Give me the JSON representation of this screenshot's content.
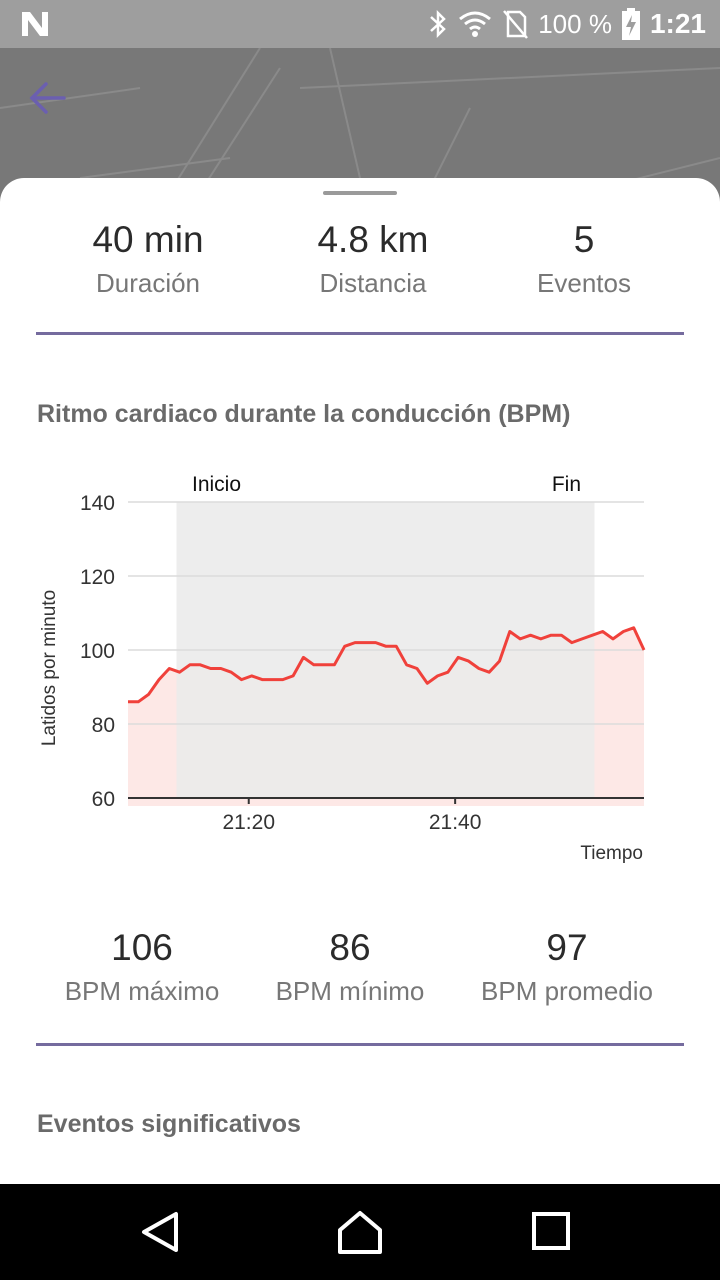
{
  "status_bar": {
    "battery_text": "100 %",
    "time": "1:21",
    "icons": [
      "n-icon",
      "bluetooth-icon",
      "wifi-icon",
      "no-sim-icon",
      "battery-charging-icon"
    ]
  },
  "header": {
    "back_icon": "arrow-left-icon",
    "accent_color": "#6b5fb0"
  },
  "summary": [
    {
      "value": "40 min",
      "label": "Duración"
    },
    {
      "value": "4.8 km",
      "label": "Distancia"
    },
    {
      "value": "5",
      "label": "Eventos"
    }
  ],
  "heart_section": {
    "title": "Ritmo cardiaco durante la conducción (BPM)"
  },
  "chart_data": {
    "type": "line",
    "ylabel": "Latidos por minuto",
    "xlabel": "Tiempo",
    "ylim": [
      60,
      140
    ],
    "yticks": [
      "60",
      "80",
      "100",
      "120",
      "140"
    ],
    "xticks": [
      {
        "label": "21:20",
        "minute": 20
      },
      {
        "label": "21:40",
        "minute": 40
      }
    ],
    "x_unit": "minutes after 21:00",
    "xlim": [
      8.3,
      58.3
    ],
    "region": {
      "start_label": "Inicio",
      "end_label": "Fin",
      "start": 13,
      "end": 53.5
    },
    "grid": true,
    "line_color": "#f0413b",
    "fill_color": "#fde8e6",
    "region_color": "#ebebeb",
    "series": [
      {
        "x": [
          8.3,
          9.3,
          10.3,
          11.3,
          12.3,
          13.3,
          14.3,
          15.3,
          16.3,
          17.3,
          18.3,
          19.3,
          20.3,
          21.3,
          22.3,
          23.3,
          24.3,
          25.3,
          26.3,
          27.3,
          28.3,
          29.3,
          30.3,
          31.3,
          32.3,
          33.3,
          34.3,
          35.3,
          36.3,
          37.3,
          38.3,
          39.3,
          40.3,
          41.3,
          42.3,
          43.3,
          44.3,
          45.3,
          46.3,
          47.3,
          48.3,
          49.3,
          50.3,
          51.3,
          52.3,
          53.3,
          54.3,
          55.3,
          56.3,
          57.3,
          58.3
        ],
        "values": [
          86,
          86,
          88,
          92,
          95,
          94,
          96,
          96,
          95,
          95,
          94,
          92,
          93,
          92,
          92,
          92,
          93,
          98,
          96,
          96,
          96,
          101,
          102,
          102,
          102,
          101,
          101,
          96,
          95,
          91,
          93,
          94,
          98,
          97,
          95,
          94,
          97,
          105,
          103,
          104,
          103,
          104,
          104,
          102,
          103,
          104,
          105,
          103,
          105,
          106,
          100
        ]
      }
    ]
  },
  "bpm_stats": [
    {
      "value": "106",
      "label": "BPM máximo"
    },
    {
      "value": "86",
      "label": "BPM mínimo"
    },
    {
      "value": "97",
      "label": "BPM promedio"
    }
  ],
  "events_section": {
    "title": "Eventos significativos"
  },
  "nav": {
    "icons": [
      "back-triangle-icon",
      "home-icon",
      "recents-square-icon"
    ]
  }
}
